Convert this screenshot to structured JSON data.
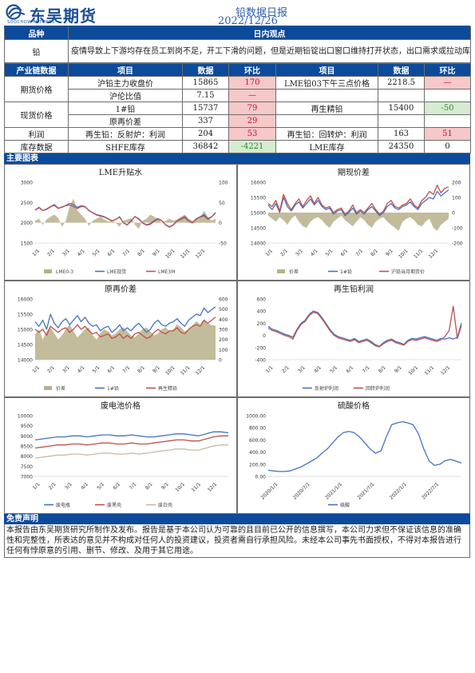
{
  "header": {
    "brand": "东吴期货",
    "brand_sub": "SOOCHOW FUTURES",
    "title": "铅数据日报",
    "date": "2022/12/26"
  },
  "colors": {
    "header_blue": "#0c4a9a",
    "up_bg": "#f6c8c8",
    "down_bg": "#d5ecd0"
  },
  "viewpoint": {
    "col_variety": "品种",
    "col_view": "日内观点",
    "variety": "铅",
    "text": "疫情导致上下游均存在员工到岗不足，开工下滑的问题，但是近期铅锭出口窗口维持打开状态，出口需求或拉动库存持续去库，预计铅价维持高位震荡。"
  },
  "chain": {
    "headers": [
      "产业链数据",
      "项目",
      "数据",
      "环比",
      "项目",
      "数据",
      "环比"
    ],
    "groups": [
      {
        "label": "期货价格",
        "rows": [
          {
            "item1": "沪铅主力收盘价",
            "val1": "15865",
            "chg1": "170",
            "c1": "up",
            "item2": "LME铅03下午三点价格",
            "val2": "2218.5",
            "chg2": "—",
            "c2": "up"
          },
          {
            "item1": "沪伦比值",
            "val1": "7.15",
            "chg1": "—",
            "c1": "up",
            "item2": "",
            "val2": "",
            "chg2": "",
            "c2": "neu"
          }
        ]
      },
      {
        "label": "现货价格",
        "rows": [
          {
            "item1": "1#铅",
            "val1": "15737",
            "chg1": "79",
            "c1": "up",
            "item2": "再生精铅",
            "val2": "15400",
            "chg2": "-50",
            "c2": "down"
          },
          {
            "item1": "原再价差",
            "val1": "337",
            "chg1": "29",
            "c1": "up",
            "item2": "",
            "val2": "",
            "chg2": "",
            "c2": "neu"
          }
        ]
      },
      {
        "label": "利润",
        "rows": [
          {
            "item1": "再生铅：反射炉：利润",
            "val1": "204",
            "chg1": "53",
            "c1": "up",
            "item2": "再生铅：回转炉：利润",
            "val2": "163",
            "chg2": "51",
            "c2": "up"
          }
        ]
      },
      {
        "label": "库存数据",
        "rows": [
          {
            "item1": "SHFE库存",
            "val1": "36842",
            "chg1": "-4221",
            "c1": "down",
            "item2": "LME库存",
            "val2": "24350",
            "chg2": "0",
            "c2": "neu"
          }
        ]
      }
    ]
  },
  "charts_section": {
    "label": "主要图表"
  },
  "chart_data": [
    {
      "type": "line",
      "title": "LME升贴水",
      "x_ticks": [
        "1/1",
        "2/1",
        "3/1",
        "4/1",
        "5/1",
        "6/1",
        "7/1",
        "8/1",
        "9/1",
        "10/1",
        "11/1",
        "12/1"
      ],
      "y_left_ticks": [
        "3000",
        "2500",
        "2000",
        "1500"
      ],
      "y_right_ticks": [
        "100",
        "50",
        "0",
        "-50"
      ],
      "ylim_left": [
        1500,
        3000
      ],
      "ylim_right": [
        -50,
        100
      ],
      "series": [
        {
          "name": "LME0-3",
          "kind": "area",
          "axis": "right",
          "color": "#b9b08a",
          "values": [
            5,
            10,
            -5,
            8,
            15,
            20,
            12,
            -10,
            5,
            40,
            60,
            30,
            20,
            10,
            -8,
            5,
            10,
            15,
            8,
            3,
            5,
            0,
            -10,
            5,
            8,
            12,
            -5,
            -15,
            5,
            10,
            20,
            15,
            10,
            0,
            5,
            10,
            5,
            8,
            15,
            20,
            10,
            5,
            8,
            12,
            30,
            15,
            5,
            10
          ]
        },
        {
          "name": "LME现货",
          "kind": "line",
          "axis": "left",
          "color": "#4472c4",
          "values": [
            2320,
            2380,
            2300,
            2340,
            2400,
            2450,
            2360,
            2380,
            2430,
            2480,
            2450,
            2380,
            2420,
            2400,
            2300,
            2250,
            2200,
            2180,
            2150,
            2100,
            2050,
            2080,
            2150,
            2000,
            1950,
            2050,
            2150,
            2100,
            2000,
            1950,
            1980,
            2050,
            2100,
            2050,
            1950,
            1900,
            1950,
            2050,
            2100,
            2150,
            2050,
            2000,
            2100,
            2150,
            2200,
            2100,
            2150,
            2250
          ]
        },
        {
          "name": "LME3M",
          "kind": "line",
          "axis": "left",
          "color": "#c0504d",
          "values": [
            2310,
            2370,
            2300,
            2330,
            2390,
            2430,
            2350,
            2390,
            2420,
            2440,
            2400,
            2350,
            2400,
            2390,
            2310,
            2245,
            2190,
            2165,
            2140,
            2095,
            2045,
            2080,
            2140,
            1995,
            1945,
            2040,
            2155,
            2085,
            1995,
            1940,
            1960,
            2035,
            2090,
            2050,
            1945,
            1890,
            1945,
            2040,
            2085,
            2130,
            2040,
            1995,
            2090,
            2140,
            2170,
            2085,
            2145,
            2240
          ]
        }
      ]
    },
    {
      "type": "line",
      "title": "期现价差",
      "x_ticks": [
        "1/1",
        "2/1",
        "3/1",
        "4/1",
        "5/1",
        "6/1",
        "7/1",
        "8/1",
        "9/1",
        "10/1",
        "11/1",
        "12/1"
      ],
      "y_left_ticks": [
        "16000",
        "15500",
        "15000",
        "14500",
        "14000"
      ],
      "y_right_ticks": [
        "200",
        "100",
        "0",
        "-100",
        "-200"
      ],
      "ylim_left": [
        14000,
        16000
      ],
      "ylim_right": [
        -200,
        200
      ],
      "series": [
        {
          "name": "价差",
          "kind": "area",
          "axis": "right",
          "color": "#b9b08a",
          "values": [
            -20,
            -40,
            -60,
            -30,
            -50,
            -80,
            -40,
            -20,
            -60,
            -90,
            -100,
            -60,
            -40,
            -30,
            -50,
            -80,
            -100,
            -60,
            -40,
            -20,
            -50,
            -70,
            -90,
            -60,
            -30,
            -50,
            -80,
            -100,
            -60,
            -40,
            -30,
            -60,
            -80,
            -100,
            -120,
            -60,
            -40,
            -30,
            -50,
            -80,
            -90,
            -60,
            -40,
            -100,
            -120,
            -80,
            -60,
            -40
          ]
        },
        {
          "name": "1#铅",
          "kind": "line",
          "axis": "left",
          "color": "#4472c4",
          "values": [
            15250,
            15100,
            15300,
            15000,
            15500,
            15200,
            15050,
            15250,
            15350,
            15150,
            15300,
            15450,
            15250,
            15400,
            15200,
            15100,
            15150,
            14950,
            15050,
            15100,
            14900,
            15000,
            15150,
            14950,
            15050,
            14950,
            15100,
            15200,
            15050,
            14900,
            15000,
            15200,
            15300,
            15150,
            15100,
            15200,
            15250,
            15350,
            15200,
            15100,
            15300,
            15400,
            15500,
            15450,
            15700,
            15550,
            15650,
            15750
          ]
        },
        {
          "name": "沪铅当月期货价",
          "kind": "line",
          "axis": "left",
          "color": "#c0504d",
          "values": [
            15300,
            15200,
            15400,
            15050,
            15600,
            15300,
            15100,
            15300,
            15450,
            15200,
            15400,
            15550,
            15300,
            15500,
            15250,
            15150,
            15200,
            15000,
            15100,
            15150,
            14950,
            15050,
            15250,
            15000,
            15100,
            15000,
            15150,
            15300,
            15100,
            14950,
            15050,
            15300,
            15400,
            15200,
            15150,
            15250,
            15300,
            15450,
            15250,
            15150,
            15400,
            15500,
            15700,
            15600,
            15900,
            15650,
            15800,
            15850
          ]
        }
      ]
    },
    {
      "type": "line",
      "title": "原再价差",
      "x_ticks": [
        "1/1",
        "2/1",
        "3/1",
        "4/1",
        "5/1",
        "6/1",
        "7/1",
        "8/1",
        "9/1",
        "10/1",
        "11/1",
        "12/1"
      ],
      "y_left_ticks": [
        "16000",
        "15500",
        "15000",
        "14500",
        "14000"
      ],
      "y_right_ticks": [
        "600",
        "500",
        "400",
        "300",
        "200",
        "100",
        "0"
      ],
      "ylim_left": [
        14000,
        16000
      ],
      "ylim_right": [
        0,
        600
      ],
      "series": [
        {
          "name": "价差",
          "kind": "area",
          "axis": "right",
          "color": "#b9b08a",
          "values": [
            250,
            300,
            200,
            280,
            320,
            260,
            200,
            240,
            300,
            350,
            280,
            220,
            260,
            300,
            320,
            240,
            200,
            260,
            300,
            280,
            240,
            260,
            300,
            320,
            280,
            240,
            220,
            260,
            300,
            320,
            280,
            240,
            260,
            300,
            320,
            280,
            300,
            350,
            320,
            280,
            300,
            340,
            380,
            350,
            400,
            360,
            340,
            337
          ]
        },
        {
          "name": "1#铅",
          "kind": "line",
          "axis": "left",
          "color": "#4472c4",
          "values": [
            15250,
            15100,
            15300,
            15000,
            15500,
            15200,
            15050,
            15250,
            15350,
            15150,
            15300,
            15450,
            15250,
            15400,
            15200,
            15100,
            15150,
            14950,
            15050,
            15100,
            14900,
            15000,
            15150,
            14950,
            15050,
            14950,
            15100,
            15200,
            15050,
            14900,
            15000,
            15200,
            15300,
            15150,
            15100,
            15200,
            15250,
            15350,
            15200,
            15100,
            15300,
            15400,
            15500,
            15450,
            15700,
            15550,
            15650,
            15737
          ]
        },
        {
          "name": "再生精铅",
          "kind": "line",
          "axis": "left",
          "color": "#c0504d",
          "values": [
            15000,
            14900,
            15000,
            14800,
            15100,
            15000,
            14900,
            15000,
            15050,
            14900,
            15000,
            15150,
            15000,
            15100,
            14950,
            14850,
            14900,
            14750,
            14800,
            14850,
            14700,
            14750,
            14850,
            14700,
            14800,
            14700,
            14850,
            14900,
            14800,
            14700,
            14750,
            14900,
            15000,
            14900,
            14850,
            14950,
            14950,
            15050,
            14900,
            14850,
            15000,
            15100,
            15150,
            15100,
            15300,
            15200,
            15300,
            15400
          ]
        }
      ]
    },
    {
      "type": "line",
      "title": "再生铅利润",
      "x_ticks": [
        "1/1",
        "2/1",
        "3/1",
        "4/1",
        "5/1",
        "6/1",
        "7/1",
        "8/1",
        "9/1",
        "10/1",
        "11/1",
        "12/1"
      ],
      "y_left_ticks": [
        "600",
        "400",
        "200",
        "0",
        "-200",
        "-400"
      ],
      "ylim_left": [
        -400,
        600
      ],
      "series": [
        {
          "name": "反射炉利润",
          "kind": "line",
          "axis": "left",
          "color": "#4472c4",
          "values": [
            150,
            100,
            80,
            50,
            20,
            0,
            -30,
            100,
            200,
            250,
            350,
            400,
            380,
            300,
            200,
            100,
            20,
            -20,
            -40,
            -60,
            -80,
            -50,
            -100,
            -80,
            -60,
            -100,
            -150,
            -180,
            -120,
            -80,
            -60,
            -100,
            -120,
            -150,
            -80,
            -50,
            -60,
            -40,
            -20,
            -40,
            -60,
            -80,
            -50,
            -60,
            -40,
            -60,
            -30,
            204
          ]
        },
        {
          "name": "回转炉利润",
          "kind": "line",
          "axis": "left",
          "color": "#c0504d",
          "values": [
            120,
            80,
            60,
            30,
            0,
            -20,
            -60,
            80,
            180,
            230,
            330,
            380,
            360,
            280,
            180,
            80,
            0,
            -40,
            -60,
            -80,
            -100,
            -70,
            -120,
            -100,
            -80,
            -120,
            -170,
            -190,
            -140,
            -100,
            -80,
            -120,
            -140,
            -160,
            -100,
            -70,
            -80,
            -60,
            -40,
            -60,
            -80,
            -100,
            -70,
            -20,
            80,
            480,
            -50,
            163
          ]
        }
      ]
    },
    {
      "type": "line",
      "title": "废电池价格",
      "x_ticks": [
        "1/1",
        "2/1",
        "3/1",
        "4/1",
        "5/1",
        "6/1",
        "7/1",
        "8/1",
        "9/1",
        "10/1",
        "11/1",
        "12/1"
      ],
      "y_left_ticks": [
        "10000",
        "9500",
        "9000",
        "8500",
        "8000",
        "7500",
        "7000"
      ],
      "ylim_left": [
        7000,
        10000
      ],
      "series": [
        {
          "name": "废电瓶",
          "kind": "line",
          "axis": "left",
          "color": "#4472c4",
          "values": [
            8800,
            8850,
            8900,
            8950,
            8950,
            9000,
            9000,
            8950,
            9000,
            9050,
            9050,
            9000,
            9000,
            9050,
            9000,
            8950,
            8950,
            9000,
            9050,
            9100,
            9100,
            9050,
            9000,
            9100,
            9200,
            9200,
            9150
          ]
        },
        {
          "name": "废黑壳",
          "kind": "line",
          "axis": "left",
          "color": "#c0504d",
          "values": [
            8400,
            8450,
            8500,
            8550,
            8550,
            8600,
            8600,
            8550,
            8600,
            8650,
            8650,
            8600,
            8600,
            8650,
            8600,
            8600,
            8650,
            8700,
            8750,
            8800,
            8800,
            8750,
            8750,
            8850,
            8950,
            9000,
            9000
          ]
        },
        {
          "name": "废白壳",
          "kind": "line",
          "axis": "left",
          "color": "#c8b9a0",
          "values": [
            7900,
            7950,
            8000,
            8050,
            8050,
            8100,
            8100,
            8050,
            8100,
            8150,
            8150,
            8100,
            8100,
            8150,
            8100,
            8150,
            8200,
            8250,
            8300,
            8350,
            8350,
            8300,
            8300,
            8400,
            8500,
            8550,
            8550
          ]
        }
      ]
    },
    {
      "type": "line",
      "title": "硫酸价格",
      "x_ticks": [
        "2020/1/1",
        "2020/7/1",
        "2021/1/1",
        "2021/7/1",
        "2022/1/1",
        "2022/7/1"
      ],
      "y_left_ticks": [
        "1000.00",
        "800.00",
        "600.00",
        "400.00",
        "200.00",
        "0.00"
      ],
      "ylim_left": [
        0,
        1000
      ],
      "series": [
        {
          "name": "硫酸",
          "kind": "line",
          "axis": "left",
          "color": "#4472c4",
          "values": [
            100,
            90,
            80,
            80,
            90,
            120,
            150,
            200,
            250,
            300,
            380,
            450,
            550,
            650,
            720,
            740,
            720,
            650,
            550,
            450,
            380,
            420,
            650,
            850,
            880,
            900,
            880,
            850,
            700,
            450,
            250,
            180,
            200,
            260,
            280,
            250,
            220
          ]
        }
      ]
    }
  ],
  "disclaimer": {
    "label": "免责声明",
    "text": "本报告由东吴期货研究所制作及发布。报告是基于本公司认为可靠的且目前已公开的信息撰写，本公司力求但不保证该信息的准确性和完整性，所表达的意见并不构成对任何人的投资建议，投资者需自行承担风险。未经本公司事先书面授权，不得对本报告进行任何有悖原意的引用、删节、修改、及用于其它用途。"
  }
}
